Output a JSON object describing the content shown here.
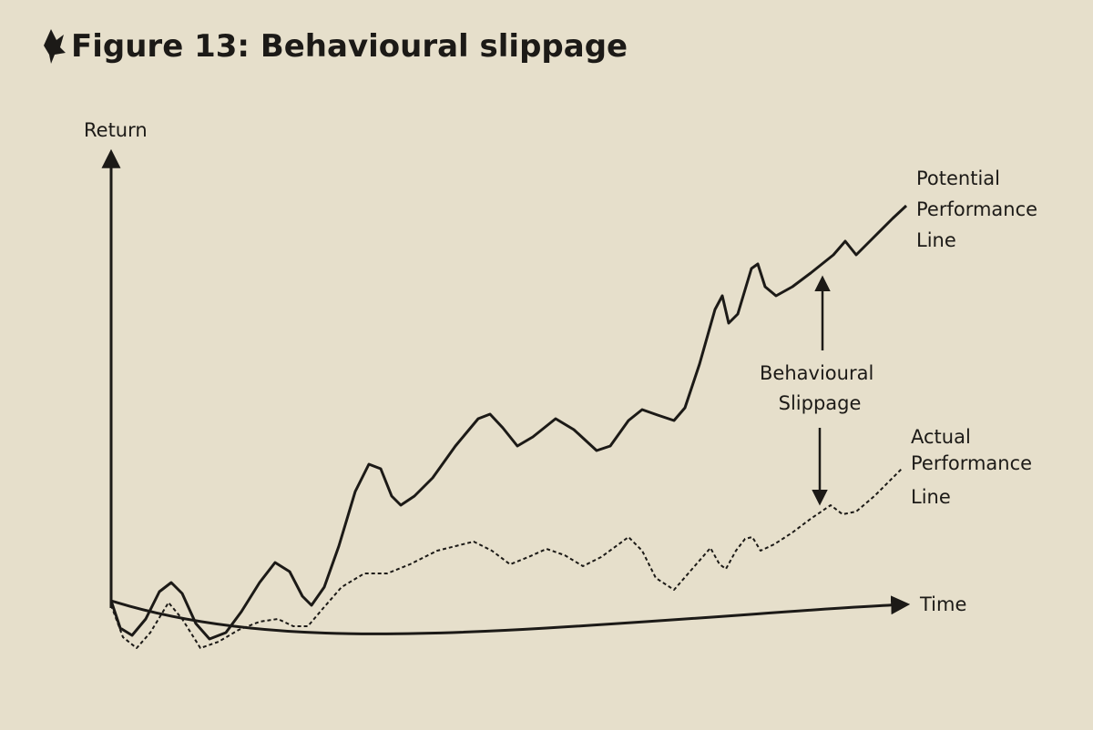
{
  "title": "Figure 13: Behavioural slippage",
  "axes": {
    "y_label": "Return",
    "x_label": "Time"
  },
  "labels": {
    "potential": [
      "Potential",
      "Performance",
      "Line"
    ],
    "slippage": [
      "Behavioural",
      "Slippage"
    ],
    "actual": [
      "Actual",
      "Performance",
      "Line"
    ]
  }
}
